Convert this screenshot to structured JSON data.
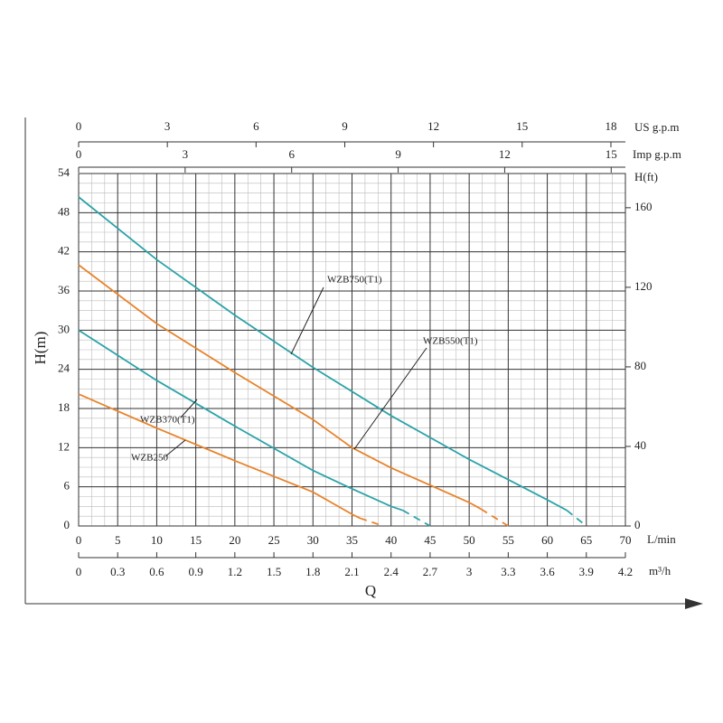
{
  "chart_data": {
    "type": "line",
    "x_label": "Q",
    "y_label": "H(m)",
    "xlim": [
      0,
      70
    ],
    "xticks": [
      0,
      5,
      10,
      15,
      20,
      25,
      30,
      35,
      40,
      45,
      50,
      55,
      60,
      65,
      70
    ],
    "x_unit": "L/min",
    "ylim": [
      0,
      54
    ],
    "yticks": [
      0,
      6,
      12,
      18,
      24,
      30,
      36,
      42,
      48,
      54
    ],
    "x2_unit": "m³/h",
    "x2lim": [
      0,
      4.2
    ],
    "x2ticks": [
      0,
      0.3,
      0.6,
      0.9,
      1.2,
      1.5,
      1.8,
      2.1,
      2.4,
      2.7,
      3,
      3.3,
      3.6,
      3.9,
      4.2
    ],
    "x3_unit": "US g.p.m",
    "x3lim": [
      0,
      18.49
    ],
    "x3ticks": [
      0,
      3,
      6,
      9,
      12,
      15,
      18
    ],
    "x4_unit": "Imp g.p.m",
    "x4lim": [
      0,
      15.4
    ],
    "x4ticks": [
      0,
      3,
      6,
      9,
      12,
      15
    ],
    "y2_unit": "H(ft)",
    "y2lim": [
      0,
      177.2
    ],
    "y2ticks": [
      0,
      40,
      80,
      120,
      160
    ],
    "grid": true,
    "series": [
      {
        "name": "WZB750(T1)",
        "color": "#2ba3a8",
        "x": [
          0,
          10,
          20,
          30,
          40,
          50,
          60,
          62.5,
          65
        ],
        "values": [
          50.4,
          40.8,
          32.3,
          24.3,
          16.9,
          10.2,
          4,
          2.4,
          0
        ],
        "dashed_from": 7
      },
      {
        "name": "WZB550(T1)",
        "color": "#e8832a",
        "x": [
          0,
          10,
          20,
          30,
          35,
          40,
          50,
          51.5,
          55
        ],
        "values": [
          40,
          31,
          23.5,
          16.3,
          12,
          8.9,
          3.6,
          2.6,
          0
        ],
        "dashed_from": 7
      },
      {
        "name": "WZB370(T1)",
        "color": "#2ba3a8",
        "x": [
          0,
          10,
          20,
          30,
          35,
          40,
          41.5,
          45
        ],
        "values": [
          30,
          22.3,
          15.3,
          8.5,
          5.7,
          3,
          2.4,
          0
        ],
        "dashed_from": 6
      },
      {
        "name": "WZB250",
        "color": "#e8832a",
        "x": [
          0,
          10,
          20,
          30,
          35,
          36,
          39
        ],
        "values": [
          20.2,
          15,
          10,
          5.2,
          1.8,
          1.2,
          0
        ],
        "dashed_from": 5
      }
    ]
  }
}
